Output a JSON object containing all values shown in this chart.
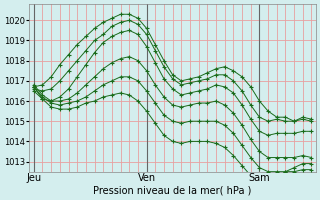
{
  "title": "Pression niveau de la mer( hPa )",
  "bg_color": "#d4eeee",
  "grid_color": "#e8a0a0",
  "line_color": "#1a6b1a",
  "ylim": [
    1012.5,
    1020.8
  ],
  "yticks": [
    1013,
    1014,
    1015,
    1016,
    1017,
    1018,
    1019,
    1020
  ],
  "xtick_labels": [
    "Jeu",
    "Ven",
    "Sam"
  ],
  "xtick_positions": [
    0,
    13,
    26
  ],
  "vlines": [
    0,
    13,
    26
  ],
  "num_points": 33,
  "series": [
    [
      1016.7,
      1016.8,
      1017.2,
      1017.8,
      1018.3,
      1018.8,
      1019.2,
      1019.6,
      1019.9,
      1020.1,
      1020.3,
      1020.3,
      1020.1,
      1019.6,
      1018.8,
      1018.0,
      1017.3,
      1017.0,
      1017.1,
      1017.2,
      1017.4,
      1017.6,
      1017.7,
      1017.5,
      1017.2,
      1016.7,
      1016.0,
      1015.5,
      1015.2,
      1015.2,
      1015.0,
      1015.1,
      1015.0
    ],
    [
      1016.6,
      1016.5,
      1016.6,
      1017.0,
      1017.5,
      1018.0,
      1018.5,
      1019.0,
      1019.3,
      1019.7,
      1019.9,
      1020.0,
      1019.8,
      1019.3,
      1018.5,
      1017.7,
      1017.1,
      1016.8,
      1016.9,
      1017.0,
      1017.1,
      1017.3,
      1017.3,
      1017.0,
      1016.5,
      1015.8,
      1015.2,
      1015.0,
      1015.1,
      1015.0,
      1015.0,
      1015.2,
      1015.1
    ],
    [
      1016.5,
      1016.1,
      1016.0,
      1016.2,
      1016.6,
      1017.2,
      1017.8,
      1018.4,
      1018.9,
      1019.2,
      1019.4,
      1019.5,
      1019.3,
      1018.7,
      1017.9,
      1017.1,
      1016.6,
      1016.3,
      1016.4,
      1016.5,
      1016.6,
      1016.8,
      1016.7,
      1016.4,
      1015.8,
      1015.1,
      1014.5,
      1014.3,
      1014.4,
      1014.4,
      1014.4,
      1014.5,
      1014.5
    ],
    [
      1016.8,
      1016.3,
      1016.0,
      1016.0,
      1016.1,
      1016.4,
      1016.8,
      1017.2,
      1017.6,
      1017.9,
      1018.1,
      1018.2,
      1018.0,
      1017.5,
      1016.8,
      1016.2,
      1015.8,
      1015.7,
      1015.8,
      1015.9,
      1015.9,
      1016.0,
      1015.8,
      1015.4,
      1014.8,
      1014.1,
      1013.5,
      1013.2,
      1013.2,
      1013.2,
      1013.2,
      1013.3,
      1013.2
    ],
    [
      1016.7,
      1016.2,
      1015.9,
      1015.8,
      1015.9,
      1016.0,
      1016.2,
      1016.5,
      1016.8,
      1017.0,
      1017.2,
      1017.2,
      1017.0,
      1016.5,
      1015.9,
      1015.3,
      1015.0,
      1014.9,
      1015.0,
      1015.0,
      1015.0,
      1015.0,
      1014.8,
      1014.4,
      1013.8,
      1013.2,
      1012.7,
      1012.5,
      1012.5,
      1012.5,
      1012.5,
      1012.6,
      1012.6
    ],
    [
      1016.7,
      1016.1,
      1015.7,
      1015.6,
      1015.6,
      1015.7,
      1015.9,
      1016.0,
      1016.2,
      1016.3,
      1016.4,
      1016.3,
      1016.0,
      1015.5,
      1014.9,
      1014.3,
      1014.0,
      1013.9,
      1014.0,
      1014.0,
      1014.0,
      1013.9,
      1013.7,
      1013.3,
      1012.8,
      1012.3,
      1012.0,
      1012.0,
      1012.2,
      1012.5,
      1012.7,
      1012.9,
      1012.9
    ]
  ]
}
